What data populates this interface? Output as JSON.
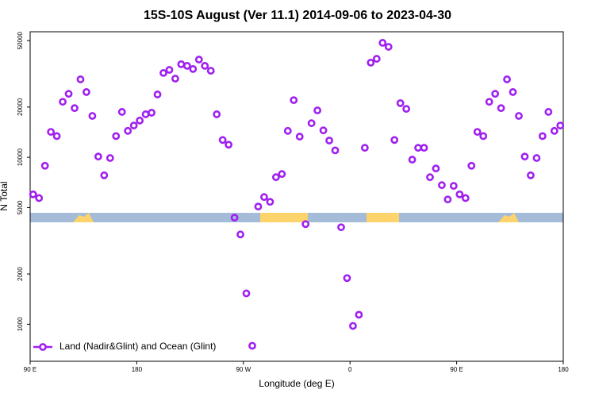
{
  "chart_data": {
    "type": "scatter",
    "title": "15S-10S August (Ver 11.1)   2014-09-06 to 2023-04-30",
    "x_label": "Longitude (deg E)",
    "y_label": "N Total",
    "x": [
      92.5,
      97.5,
      102.5,
      107.5,
      112.5,
      117.5,
      122.5,
      127.5,
      132.5,
      137.5,
      142.5,
      147.5,
      152.5,
      157.5,
      162.5,
      167.5,
      172.5,
      177.5,
      182.5,
      187.5,
      192.5,
      197.5,
      202.5,
      207.5,
      212.5,
      217.5,
      222.5,
      227.5,
      232.5,
      237.5,
      242.5,
      247.5,
      252.5,
      257.5,
      262.5,
      267.5,
      272.5,
      277.5,
      282.5,
      287.5,
      292.5,
      297.5,
      302.5,
      307.5,
      312.5,
      317.5,
      322.5,
      327.5,
      332.5,
      337.5,
      342.5,
      347.5,
      352.5,
      357.5,
      362.5,
      367.5,
      372.5,
      377.5,
      382.5,
      387.5,
      392.5,
      397.5,
      402.5,
      407.5,
      412.5,
      417.5,
      422.5,
      427.5,
      432.5,
      437.5,
      442.5,
      447.5,
      452.5,
      457.5,
      462.5,
      467.5,
      472.5,
      477.5,
      482.5,
      487.5,
      492.5,
      497.5,
      502.5,
      507.5,
      512.5,
      517.5,
      522.5,
      527.5,
      532.5,
      537.5
    ],
    "series": [
      {
        "name": "Land (Nadir&Glint) and Ocean (Glint)",
        "color": "#a020f0",
        "values": [
          6000,
          5700,
          8900,
          14200,
          13400,
          21500,
          24000,
          19700,
          29300,
          24600,
          17700,
          10100,
          7800,
          9900,
          13400,
          18700,
          14400,
          15500,
          16600,
          18100,
          18500,
          23800,
          32000,
          33400,
          29600,
          36100,
          35300,
          33800,
          38500,
          35300,
          33000,
          18100,
          12700,
          11900,
          4350,
          3450,
          1530,
          743,
          5070,
          5780,
          5410,
          7600,
          7940,
          14400,
          22000,
          13300,
          3980,
          16000,
          19100,
          14500,
          12600,
          11000,
          3810,
          1890,
          977,
          1140,
          11400,
          36900,
          38900,
          48500,
          45900,
          12700,
          21100,
          19500,
          9680,
          11400,
          11400,
          7600,
          8570,
          6810,
          5590,
          6740,
          6000,
          5700,
          8900,
          14200,
          13400,
          21500,
          24000,
          19700,
          29300,
          24600,
          17700,
          10100,
          7800,
          9900,
          13400,
          18700,
          14400,
          15500
        ]
      }
    ],
    "xlim": [
      90,
      540
    ],
    "xticks": [
      {
        "value": 90,
        "label": "90 E"
      },
      180,
      {
        "value": 270,
        "label": "90 W"
      },
      {
        "value": 360,
        "label": "0"
      },
      {
        "value": 450,
        "label": "90 E"
      },
      {
        "value": 540,
        "label": "180"
      }
    ],
    "ylim": [
      600,
      56500
    ],
    "yscale": "log",
    "yticks": [
      1000,
      2000,
      5000,
      10000,
      20000,
      50000
    ],
    "legend": "bottom-left"
  }
}
